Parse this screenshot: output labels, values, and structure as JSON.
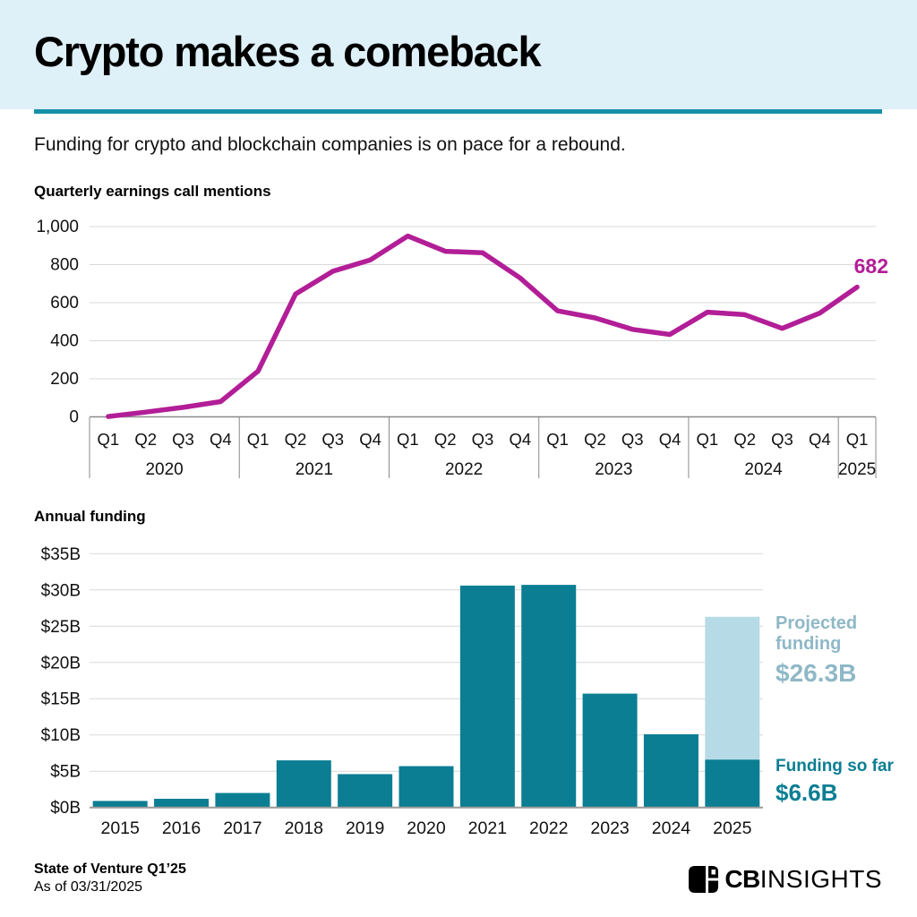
{
  "header": {
    "title": "Crypto makes a comeback",
    "subtitle": "Funding for crypto and blockchain companies is on pace for a rebound."
  },
  "colors": {
    "header_bg": "#def0f8",
    "divider_rule": "#1791a8",
    "grid": "#d9d9d9",
    "axis": "#8a8a8a",
    "text": "#111111"
  },
  "chart_data": [
    {
      "type": "line",
      "title": "Quarterly earnings call mentions",
      "ymax": 1000,
      "ytick_step": 200,
      "ytick_labels": [
        "1,000",
        "800",
        "600",
        "400",
        "200",
        "0"
      ],
      "years": [
        {
          "label": "2020",
          "quarters": [
            "Q1",
            "Q2",
            "Q3",
            "Q4"
          ]
        },
        {
          "label": "2021",
          "quarters": [
            "Q1",
            "Q2",
            "Q3",
            "Q4"
          ]
        },
        {
          "label": "2022",
          "quarters": [
            "Q1",
            "Q2",
            "Q3",
            "Q4"
          ]
        },
        {
          "label": "2023",
          "quarters": [
            "Q1",
            "Q2",
            "Q3",
            "Q4"
          ]
        },
        {
          "label": "2024",
          "quarters": [
            "Q1",
            "Q2",
            "Q3",
            "Q4"
          ]
        },
        {
          "label": "2025",
          "quarters": [
            "Q1"
          ]
        }
      ],
      "values": [
        2,
        25,
        50,
        80,
        240,
        645,
        765,
        825,
        950,
        870,
        862,
        730,
        557,
        520,
        460,
        433,
        550,
        537,
        465,
        545,
        682
      ],
      "end_label": "682",
      "color": "#b21e97",
      "grid": true,
      "legend": "none"
    },
    {
      "type": "bar",
      "title": "Annual funding",
      "categories": [
        "2015",
        "2016",
        "2017",
        "2018",
        "2019",
        "2020",
        "2021",
        "2022",
        "2023",
        "2024",
        "2025"
      ],
      "values": [
        0.9,
        1.2,
        2.0,
        6.5,
        4.6,
        5.7,
        30.6,
        30.7,
        15.7,
        10.1,
        6.6
      ],
      "projected_2025_total": 26.3,
      "ymax": 35,
      "ytick_step": 5,
      "ytick_labels": [
        "$35B",
        "$30B",
        "$25B",
        "$20B",
        "$15B",
        "$10B",
        "$5B",
        "$0B"
      ],
      "bar_color": "#0b7e93",
      "projected_color": "#b7dbe6",
      "grid": true,
      "legend": "none",
      "annotations": {
        "projected": {
          "line1": "Projected",
          "line2": "funding",
          "value": "$26.3B",
          "color": "#8fb8c6"
        },
        "so_far": {
          "label": "Funding so far",
          "value": "$6.6B",
          "color": "#0b7e93"
        }
      }
    }
  ],
  "footer": {
    "source": "State of Venture Q1’25",
    "as_of": "As of 03/31/2025",
    "logo_cb": "CB",
    "logo_insights": "INSIGHTS"
  }
}
